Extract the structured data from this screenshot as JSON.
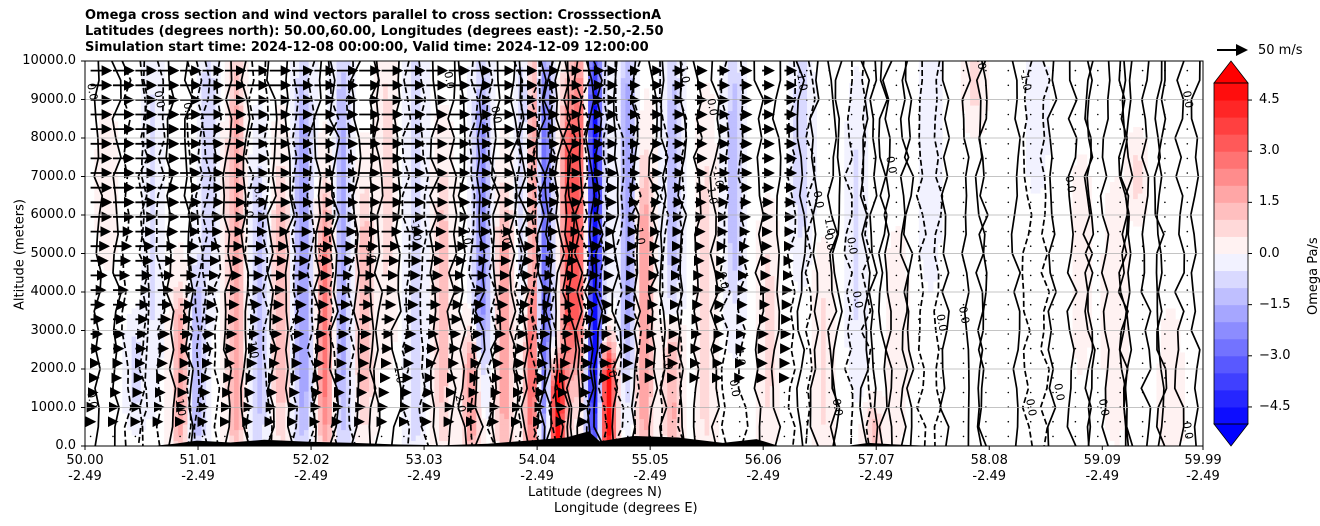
{
  "title_lines": [
    "Omega cross section and wind vectors parallel to cross section: CrosssectionA",
    "Latitudes (degrees north): 50.00,60.00, Longitudes (degrees east): -2.50,-2.50",
    "Simulation start time: 2024-12-08 00:00:00, Valid time: 2024-12-09 12:00:00"
  ],
  "chart_data": {
    "type": "heatmap",
    "title": "Omega cross section and wind vectors parallel to cross section: CrosssectionA",
    "ylabel": "Altitude (meters)",
    "xlabel_lines": [
      "Latitude (degrees N)",
      "Longitude (degrees E)"
    ],
    "ylim": [
      0,
      10000
    ],
    "xlim": [
      50.0,
      59.99
    ],
    "grid": "horizontal",
    "y_ticks": [
      0,
      1000,
      2000,
      3000,
      4000,
      5000,
      6000,
      7000,
      8000,
      9000,
      10000
    ],
    "y_tick_labels": [
      "0.0",
      "1000.0",
      "2000.0",
      "3000.0",
      "4000.0",
      "5000.0",
      "6000.0",
      "7000.0",
      "8000.0",
      "9000.0",
      "10000.0"
    ],
    "x_ticks": [
      50.0,
      51.01,
      52.02,
      53.03,
      54.04,
      55.05,
      56.06,
      57.07,
      58.08,
      59.09,
      59.99
    ],
    "x_tick_lat_labels": [
      "50.00",
      "51.01",
      "52.02",
      "53.03",
      "54.04",
      "55.05",
      "56.06",
      "57.07",
      "58.08",
      "59.09",
      "59.99"
    ],
    "x_tick_lon_labels": [
      "-2.49",
      "-2.49",
      "-2.49",
      "-2.49",
      "-2.49",
      "-2.49",
      "-2.49",
      "-2.49",
      "-2.49",
      "-2.49",
      "-2.49"
    ],
    "colorbar": {
      "label": "Omega Pa/s",
      "vmin": -5.0,
      "vmax": 5.0,
      "step": 0.5,
      "extend": "both",
      "ticks": [
        4.5,
        3.0,
        1.5,
        0.0,
        -1.5,
        -3.0,
        -4.5
      ],
      "tick_labels": [
        "4.5",
        "3.0",
        "1.5",
        "0.0",
        "−1.5",
        "−3.0",
        "−4.5"
      ],
      "colormap": "bwr"
    },
    "quiver_key": {
      "value": 50,
      "label": "50 m/s"
    },
    "omega_features": [
      {
        "lat": 50.2,
        "value": 0.4,
        "zmin": 5500,
        "zmax": 7800
      },
      {
        "lat": 50.45,
        "value": -0.8,
        "zmin": 1200,
        "zmax": 2600
      },
      {
        "lat": 50.6,
        "value": -0.6,
        "zmin": 3000,
        "zmax": 9500
      },
      {
        "lat": 50.85,
        "value": 1.8,
        "zmin": 200,
        "zmax": 3500
      },
      {
        "lat": 51.0,
        "value": -1.5,
        "zmin": 300,
        "zmax": 4000
      },
      {
        "lat": 51.1,
        "value": -0.9,
        "zmin": 5000,
        "zmax": 9800
      },
      {
        "lat": 51.35,
        "value": 2.0,
        "zmin": 300,
        "zmax": 9000
      },
      {
        "lat": 51.55,
        "value": -1.2,
        "zmin": 500,
        "zmax": 6500
      },
      {
        "lat": 51.75,
        "value": 1.4,
        "zmin": 1000,
        "zmax": 6500
      },
      {
        "lat": 51.95,
        "value": -2.0,
        "zmin": 800,
        "zmax": 8800
      },
      {
        "lat": 52.15,
        "value": 2.6,
        "zmin": 500,
        "zmax": 5800
      },
      {
        "lat": 52.3,
        "value": -1.6,
        "zmin": 600,
        "zmax": 9500
      },
      {
        "lat": 52.5,
        "value": 1.3,
        "zmin": 1200,
        "zmax": 6000
      },
      {
        "lat": 52.7,
        "value": 0.6,
        "zmin": 4000,
        "zmax": 9800
      },
      {
        "lat": 52.95,
        "value": -0.9,
        "zmin": 500,
        "zmax": 9800
      },
      {
        "lat": 53.2,
        "value": 1.2,
        "zmin": 800,
        "zmax": 6500
      },
      {
        "lat": 53.45,
        "value": 2.0,
        "zmin": 200,
        "zmax": 2500
      },
      {
        "lat": 53.55,
        "value": -2.4,
        "zmin": 3000,
        "zmax": 8800
      },
      {
        "lat": 53.75,
        "value": 1.8,
        "zmin": 300,
        "zmax": 5800
      },
      {
        "lat": 53.95,
        "value": -2.0,
        "zmin": 4000,
        "zmax": 9800
      },
      {
        "lat": 54.0,
        "value": 3.6,
        "zmin": 0,
        "zmax": 9800
      },
      {
        "lat": 54.1,
        "value": -3.2,
        "zmin": 300,
        "zmax": 9800
      },
      {
        "lat": 54.22,
        "value": 5.0,
        "zmin": 0,
        "zmax": 1800
      },
      {
        "lat": 54.32,
        "value": 3.2,
        "zmin": 2500,
        "zmax": 8500
      },
      {
        "lat": 54.43,
        "value": 2.8,
        "zmin": 2500,
        "zmax": 9800
      },
      {
        "lat": 54.55,
        "value": -5.0,
        "zmin": 0,
        "zmax": 10000
      },
      {
        "lat": 54.67,
        "value": 5.0,
        "zmin": 0,
        "zmax": 2200
      },
      {
        "lat": 54.85,
        "value": -1.8,
        "zmin": 2500,
        "zmax": 9800
      },
      {
        "lat": 55.0,
        "value": 2.0,
        "zmin": 300,
        "zmax": 6500
      },
      {
        "lat": 55.25,
        "value": 1.6,
        "zmin": 300,
        "zmax": 2800
      },
      {
        "lat": 55.25,
        "value": -1.2,
        "zmin": 4000,
        "zmax": 9800
      },
      {
        "lat": 55.55,
        "value": 0.8,
        "zmin": 500,
        "zmax": 7000
      },
      {
        "lat": 55.8,
        "value": -1.3,
        "zmin": 4500,
        "zmax": 9500
      },
      {
        "lat": 56.1,
        "value": 0.7,
        "zmin": 1000,
        "zmax": 5000
      },
      {
        "lat": 56.4,
        "value": -0.9,
        "zmin": 5800,
        "zmax": 9800
      },
      {
        "lat": 56.6,
        "value": 0.6,
        "zmin": 500,
        "zmax": 4000
      },
      {
        "lat": 56.9,
        "value": -0.6,
        "zmin": 3000,
        "zmax": 8000
      },
      {
        "lat": 57.05,
        "value": 1.2,
        "zmin": 0,
        "zmax": 700
      },
      {
        "lat": 57.25,
        "value": 0.4,
        "zmin": 1200,
        "zmax": 4500
      },
      {
        "lat": 57.55,
        "value": -0.4,
        "zmin": 5500,
        "zmax": 9800
      },
      {
        "lat": 57.95,
        "value": 0.6,
        "zmin": 8800,
        "zmax": 10000
      },
      {
        "lat": 58.5,
        "value": -0.4,
        "zmin": 7500,
        "zmax": 9800
      },
      {
        "lat": 58.9,
        "value": 0.3,
        "zmin": 3000,
        "zmax": 6500
      },
      {
        "lat": 59.2,
        "value": 0.5,
        "zmin": 1500,
        "zmax": 5500
      },
      {
        "lat": 59.4,
        "value": 0.6,
        "zmin": 6500,
        "zmax": 7500
      },
      {
        "lat": 59.7,
        "value": 0.5,
        "zmin": 100,
        "zmax": 2500
      }
    ],
    "contour_labels": [
      {
        "text": "0.0",
        "lat": 50.06,
        "z": 9200
      },
      {
        "text": "0.0",
        "lat": 50.06,
        "z": 1200
      },
      {
        "text": "0.0",
        "lat": 50.66,
        "z": 9000
      },
      {
        "text": "1.0",
        "lat": 50.85,
        "z": 1000
      },
      {
        "text": "0.0",
        "lat": 50.92,
        "z": 8700
      },
      {
        "text": "-1.0",
        "lat": 51.45,
        "z": 6200
      },
      {
        "text": "0.0",
        "lat": 51.55,
        "z": 6500
      },
      {
        "text": "1.0",
        "lat": 51.5,
        "z": 2500
      },
      {
        "text": "-2.0",
        "lat": 52.12,
        "z": 5000
      },
      {
        "text": "0.0",
        "lat": 52.55,
        "z": 5000
      },
      {
        "text": "-1.0",
        "lat": 52.95,
        "z": 5600
      },
      {
        "text": "-1.0",
        "lat": 52.8,
        "z": 1900
      },
      {
        "text": "-2.0",
        "lat": 53.4,
        "z": 5500
      },
      {
        "text": "2.0",
        "lat": 53.35,
        "z": 1100
      },
      {
        "text": "-1.0",
        "lat": 53.75,
        "z": 5500
      },
      {
        "text": "0.0",
        "lat": 53.25,
        "z": 9500
      },
      {
        "text": "0.0",
        "lat": 53.67,
        "z": 8600
      },
      {
        "text": "1.0",
        "lat": 54.7,
        "z": 2000
      },
      {
        "text": "-1.0",
        "lat": 54.95,
        "z": 5500
      },
      {
        "text": "1.0",
        "lat": 55.2,
        "z": 2200
      },
      {
        "text": "-1.0",
        "lat": 55.35,
        "z": 9700
      },
      {
        "text": "1.0",
        "lat": 55.6,
        "z": 6500
      },
      {
        "text": "-1.0",
        "lat": 55.65,
        "z": 7000
      },
      {
        "text": "1.0",
        "lat": 55.85,
        "z": 2300
      },
      {
        "text": "0.0",
        "lat": 55.8,
        "z": 1500
      },
      {
        "text": "0.0",
        "lat": 55.7,
        "z": 4300
      },
      {
        "text": "0.0",
        "lat": 55.6,
        "z": 8800
      },
      {
        "text": "-1.0",
        "lat": 56.4,
        "z": 9500
      },
      {
        "text": "0.0",
        "lat": 56.55,
        "z": 6400
      },
      {
        "text": "1.0",
        "lat": 56.65,
        "z": 5700
      },
      {
        "text": "0.0",
        "lat": 56.65,
        "z": 5300
      },
      {
        "text": "0.0",
        "lat": 56.85,
        "z": 5200
      },
      {
        "text": "0.0",
        "lat": 56.9,
        "z": 3800
      },
      {
        "text": "0.0",
        "lat": 56.72,
        "z": 1000
      },
      {
        "text": "0.0",
        "lat": 57.2,
        "z": 7300
      },
      {
        "text": "0.0",
        "lat": 57.65,
        "z": 3200
      },
      {
        "text": "0.0",
        "lat": 57.85,
        "z": 3400
      },
      {
        "text": "0.0",
        "lat": 58.0,
        "z": 10000
      },
      {
        "text": "-1.0",
        "lat": 58.4,
        "z": 9500
      },
      {
        "text": "0.0",
        "lat": 58.8,
        "z": 6800
      },
      {
        "text": "0.0",
        "lat": 58.7,
        "z": 1400
      },
      {
        "text": "0.0",
        "lat": 58.45,
        "z": 1000
      },
      {
        "text": "0.0",
        "lat": 59.1,
        "z": 1000
      },
      {
        "text": "0.0",
        "lat": 59.85,
        "z": 9000
      },
      {
        "text": "0.0",
        "lat": 59.85,
        "z": 400
      }
    ]
  }
}
